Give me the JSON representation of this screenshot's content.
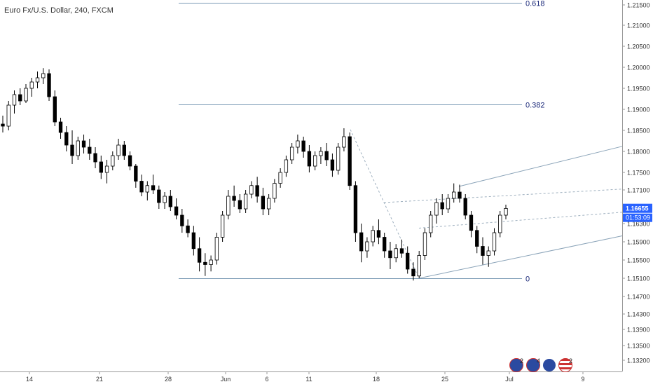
{
  "chart_data": {
    "type": "candlestick",
    "title": "Euro Fx/U.S. Dollar, 240, FXCM",
    "price_axis": {
      "ticks": [
        "1.21500",
        "1.21000",
        "1.20500",
        "1.20000",
        "1.19500",
        "1.19000",
        "1.18500",
        "1.18000",
        "1.17500",
        "1.17100",
        "1.16300",
        "1.15900",
        "1.15500",
        "1.15100",
        "1.14700",
        "1.14300",
        "1.13900",
        "1.13500",
        "1.13200"
      ]
    },
    "time_axis": {
      "ticks": [
        "14",
        "21",
        "28",
        "Jun",
        "6",
        "11",
        "18",
        "25",
        "Jul",
        "9"
      ]
    },
    "last_price": {
      "value": "1.16655",
      "countdown": "01:53:09",
      "color": "#2962ff"
    },
    "fibonacci_levels": [
      {
        "label": "0.618",
        "value": 1.2155
      },
      {
        "label": "0.382",
        "value": 1.1911
      },
      {
        "label": "0",
        "value": 1.151
      }
    ],
    "channel": {
      "upper": [
        [
          0.6,
          1.1722
        ],
        [
          1.0,
          1.1812
        ]
      ],
      "lower": [
        [
          0.6,
          1.151
        ],
        [
          1.0,
          1.1603
        ]
      ]
    },
    "candles": [
      [
        1.1865,
        1.1885,
        1.1845,
        1.186
      ],
      [
        1.186,
        1.192,
        1.185,
        1.191
      ],
      [
        1.191,
        1.1945,
        1.189,
        1.1935
      ],
      [
        1.1935,
        1.195,
        1.191,
        1.192
      ],
      [
        1.192,
        1.196,
        1.1915,
        1.195
      ],
      [
        1.195,
        1.1975,
        1.193,
        1.1965
      ],
      [
        1.1965,
        1.199,
        1.195,
        1.1975
      ],
      [
        1.1975,
        1.1998,
        1.196,
        1.1985
      ],
      [
        1.1985,
        1.1995,
        1.192,
        1.193
      ],
      [
        1.193,
        1.1945,
        1.186,
        1.187
      ],
      [
        1.187,
        1.188,
        1.183,
        1.1845
      ],
      [
        1.1845,
        1.186,
        1.18,
        1.1815
      ],
      [
        1.1815,
        1.185,
        1.177,
        1.179
      ],
      [
        1.179,
        1.1835,
        1.178,
        1.1825
      ],
      [
        1.1825,
        1.184,
        1.1795,
        1.181
      ],
      [
        1.181,
        1.183,
        1.178,
        1.1795
      ],
      [
        1.1795,
        1.181,
        1.176,
        1.1775
      ],
      [
        1.1775,
        1.179,
        1.1735,
        1.175
      ],
      [
        1.175,
        1.178,
        1.1725,
        1.1765
      ],
      [
        1.1765,
        1.18,
        1.1755,
        1.179
      ],
      [
        1.179,
        1.183,
        1.178,
        1.1815
      ],
      [
        1.1815,
        1.1825,
        1.178,
        1.179
      ],
      [
        1.179,
        1.18,
        1.1755,
        1.1765
      ],
      [
        1.1765,
        1.177,
        1.1715,
        1.173
      ],
      [
        1.173,
        1.1745,
        1.1695,
        1.1705
      ],
      [
        1.1705,
        1.173,
        1.1685,
        1.172
      ],
      [
        1.172,
        1.1745,
        1.17,
        1.171
      ],
      [
        1.171,
        1.172,
        1.1665,
        1.168
      ],
      [
        1.168,
        1.1705,
        1.1665,
        1.1695
      ],
      [
        1.1695,
        1.171,
        1.166,
        1.167
      ],
      [
        1.167,
        1.169,
        1.164,
        1.165
      ],
      [
        1.165,
        1.1665,
        1.161,
        1.1625
      ],
      [
        1.1625,
        1.164,
        1.16,
        1.161
      ],
      [
        1.161,
        1.1625,
        1.156,
        1.1575
      ],
      [
        1.1575,
        1.16,
        1.1525,
        1.1545
      ],
      [
        1.1545,
        1.1565,
        1.1515,
        1.154
      ],
      [
        1.154,
        1.156,
        1.1525,
        1.155
      ],
      [
        1.155,
        1.161,
        1.154,
        1.16
      ],
      [
        1.16,
        1.166,
        1.159,
        1.165
      ],
      [
        1.165,
        1.171,
        1.164,
        1.1695
      ],
      [
        1.1695,
        1.172,
        1.167,
        1.1685
      ],
      [
        1.1685,
        1.17,
        1.1655,
        1.1665
      ],
      [
        1.1665,
        1.171,
        1.1655,
        1.17
      ],
      [
        1.17,
        1.173,
        1.169,
        1.172
      ],
      [
        1.172,
        1.174,
        1.168,
        1.1695
      ],
      [
        1.1695,
        1.1715,
        1.165,
        1.1665
      ],
      [
        1.1665,
        1.17,
        1.165,
        1.169
      ],
      [
        1.169,
        1.1735,
        1.168,
        1.1725
      ],
      [
        1.1725,
        1.176,
        1.1715,
        1.175
      ],
      [
        1.175,
        1.179,
        1.174,
        1.178
      ],
      [
        1.178,
        1.182,
        1.177,
        1.181
      ],
      [
        1.181,
        1.184,
        1.1795,
        1.1825
      ],
      [
        1.1825,
        1.1835,
        1.1785,
        1.18
      ],
      [
        1.18,
        1.1815,
        1.175,
        1.1765
      ],
      [
        1.1765,
        1.18,
        1.1755,
        1.179
      ],
      [
        1.179,
        1.181,
        1.177,
        1.18
      ],
      [
        1.18,
        1.182,
        1.1765,
        1.178
      ],
      [
        1.178,
        1.1795,
        1.174,
        1.1755
      ],
      [
        1.1755,
        1.182,
        1.1745,
        1.181
      ],
      [
        1.181,
        1.1855,
        1.18,
        1.1835
      ],
      [
        1.1835,
        1.1845,
        1.171,
        1.172
      ],
      [
        1.172,
        1.173,
        1.159,
        1.161
      ],
      [
        1.161,
        1.163,
        1.1545,
        1.157
      ],
      [
        1.157,
        1.16,
        1.1555,
        1.159
      ],
      [
        1.159,
        1.1625,
        1.158,
        1.1615
      ],
      [
        1.1615,
        1.164,
        1.1585,
        1.16
      ],
      [
        1.16,
        1.161,
        1.1555,
        1.157
      ],
      [
        1.157,
        1.159,
        1.153,
        1.1555
      ],
      [
        1.1555,
        1.1585,
        1.1545,
        1.1575
      ],
      [
        1.1575,
        1.1595,
        1.1555,
        1.1565
      ],
      [
        1.1565,
        1.158,
        1.152,
        1.153
      ],
      [
        1.153,
        1.1545,
        1.1505,
        1.1515
      ],
      [
        1.1515,
        1.157,
        1.151,
        1.156
      ],
      [
        1.156,
        1.162,
        1.155,
        1.161
      ],
      [
        1.161,
        1.166,
        1.16,
        1.165
      ],
      [
        1.165,
        1.169,
        1.163,
        1.168
      ],
      [
        1.168,
        1.17,
        1.165,
        1.1665
      ],
      [
        1.1665,
        1.17,
        1.1655,
        1.169
      ],
      [
        1.169,
        1.1725,
        1.168,
        1.1705
      ],
      [
        1.1705,
        1.1722,
        1.168,
        1.169
      ],
      [
        1.169,
        1.17,
        1.164,
        1.165
      ],
      [
        1.165,
        1.166,
        1.16,
        1.1615
      ],
      [
        1.1615,
        1.1625,
        1.1565,
        1.158
      ],
      [
        1.158,
        1.16,
        1.154,
        1.156
      ],
      [
        1.156,
        1.158,
        1.1535,
        1.157
      ],
      [
        1.157,
        1.162,
        1.156,
        1.161
      ],
      [
        1.161,
        1.166,
        1.16,
        1.165
      ],
      [
        1.165,
        1.1675,
        1.164,
        1.1666
      ]
    ]
  }
}
